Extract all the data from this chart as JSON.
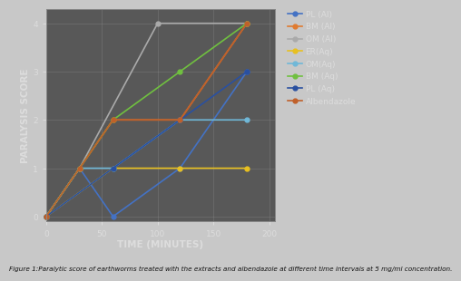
{
  "title": "",
  "xlabel": "TIME (MINUTES)",
  "ylabel": "PARALYSIS SCORE",
  "caption": "Figure 1:Paralytic score of earthworms treated with the extracts and albendazole at different time intervals at 5 mg/ml concentration.",
  "outer_bg": "#c8c8c8",
  "plot_bg_color": "#585858",
  "xlim": [
    0,
    205
  ],
  "ylim": [
    -0.1,
    4.3
  ],
  "xticks": [
    0,
    50,
    100,
    150,
    200
  ],
  "yticks": [
    0,
    1,
    2,
    3,
    4
  ],
  "series": [
    {
      "label": "PL (Al)",
      "color": "#4472c4",
      "marker": "o",
      "x": [
        0,
        30,
        60,
        120,
        180
      ],
      "y": [
        0,
        1,
        0,
        1,
        3
      ]
    },
    {
      "label": "BM (Al)",
      "color": "#e07b30",
      "marker": "o",
      "x": [
        0,
        30,
        60,
        120,
        180
      ],
      "y": [
        0,
        1,
        2,
        2,
        4
      ]
    },
    {
      "label": "OM (Al)",
      "color": "#aaaaaa",
      "marker": "o",
      "x": [
        0,
        30,
        100,
        180
      ],
      "y": [
        0,
        1,
        4,
        4
      ]
    },
    {
      "label": "ER(Aq)",
      "color": "#e8c020",
      "marker": "o",
      "x": [
        0,
        60,
        120,
        180
      ],
      "y": [
        0,
        1,
        1,
        1
      ]
    },
    {
      "label": "OM(Aq)",
      "color": "#70b8d8",
      "marker": "o",
      "x": [
        0,
        30,
        60,
        120,
        180
      ],
      "y": [
        0,
        1,
        1,
        2,
        2
      ]
    },
    {
      "label": "BM (Aq)",
      "color": "#70c040",
      "marker": "o",
      "x": [
        0,
        30,
        60,
        120,
        180
      ],
      "y": [
        0,
        1,
        2,
        3,
        4
      ]
    },
    {
      "label": "PL (Aq)",
      "color": "#2a50a0",
      "marker": "o",
      "x": [
        0,
        60,
        120,
        180
      ],
      "y": [
        0,
        1,
        2,
        3
      ]
    },
    {
      "label": "Albendazole",
      "color": "#c0602a",
      "marker": "o",
      "x": [
        0,
        30,
        60,
        120,
        180
      ],
      "y": [
        0,
        1,
        2,
        2,
        4
      ]
    }
  ],
  "legend_fontsize": 6.5,
  "axis_label_fontsize": 7.5,
  "tick_fontsize": 6.5,
  "caption_fontsize": 5.2,
  "grid_color": "#888888",
  "text_color": "#dddddd",
  "spine_color": "#888888"
}
